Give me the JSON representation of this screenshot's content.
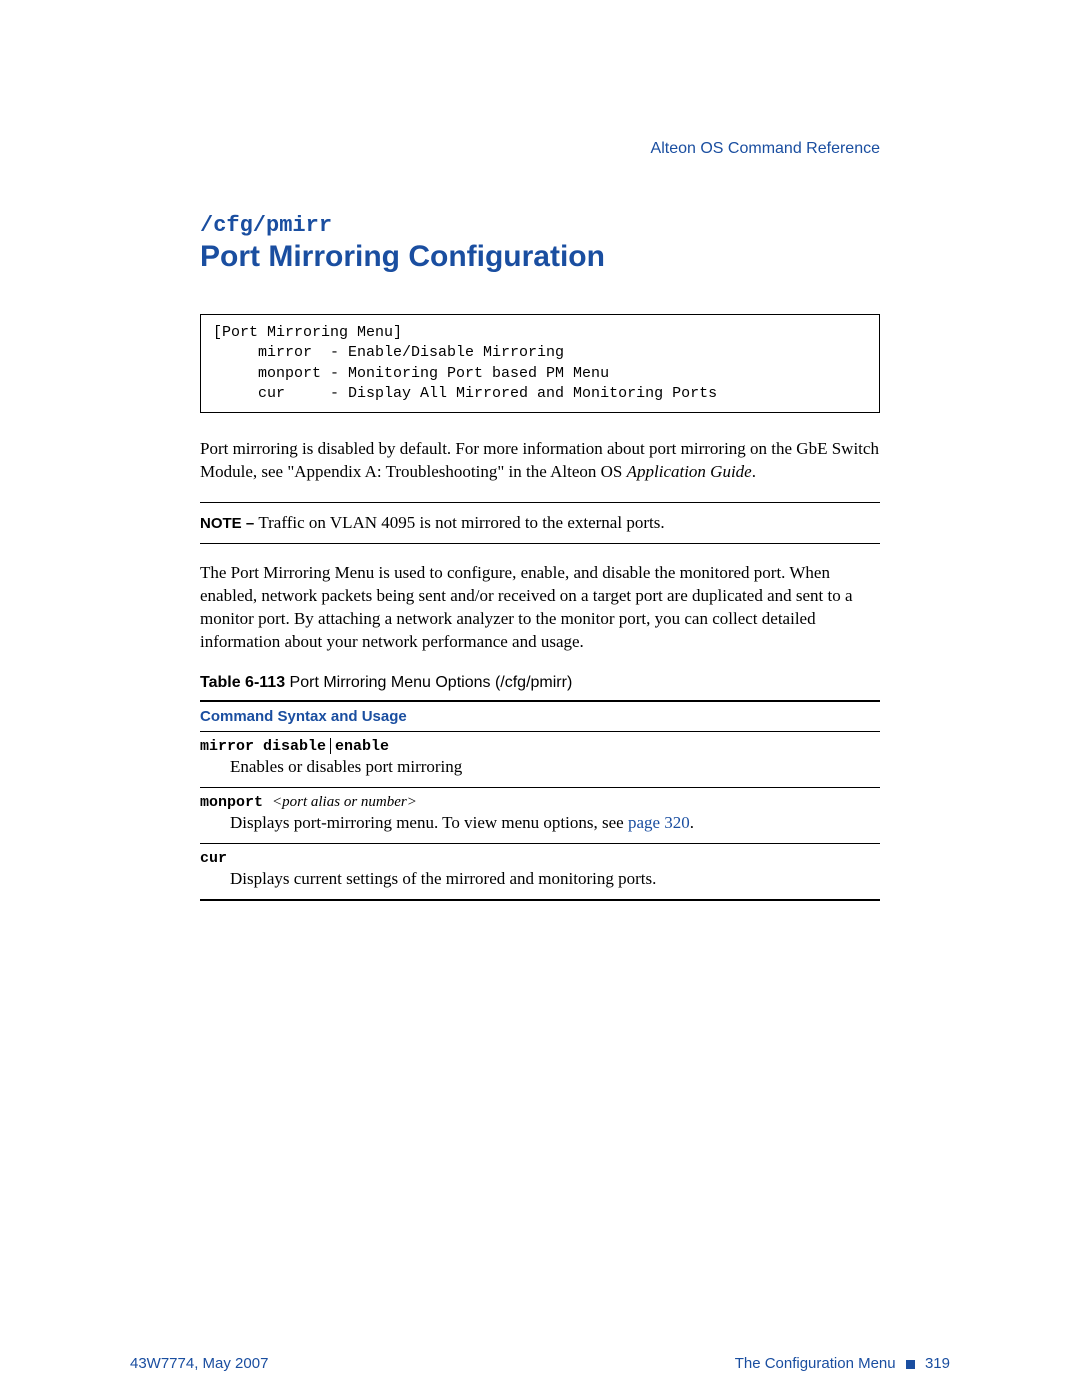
{
  "colors": {
    "brand_blue": "#1a4ea0",
    "text_black": "#000000",
    "background": "#ffffff"
  },
  "header": {
    "doc_title": "Alteon OS  Command Reference"
  },
  "section": {
    "cmd_path": "/cfg/pmirr",
    "title": "Port Mirroring Configuration"
  },
  "code_box": {
    "line1": "[Port Mirroring Menu]",
    "line2": "     mirror  - Enable/Disable Mirroring",
    "line3": "     monport - Monitoring Port based PM Menu",
    "line4": "     cur     - Display All Mirrored and Monitoring Ports"
  },
  "paragraphs": {
    "p1_a": "Port mirroring is disabled by default. For more information about port mirroring on the GbE Switch Module, see \"Appendix A: Troubleshooting\" in the Alteon OS ",
    "p1_italic": "Application Guide",
    "p1_b": ".",
    "p2": "The Port Mirroring Menu is used to configure, enable, and disable the monitored port. When enabled, network packets being sent and/or received on a target port are duplicated and sent to a monitor port. By attaching a network analyzer to the monitor port, you can collect detailed information about your network performance and usage."
  },
  "note": {
    "label": "NOTE – ",
    "text": "Traffic on VLAN 4095 is not mirrored to the external ports."
  },
  "table": {
    "caption_num": "Table 6-113",
    "caption_text": "  Port Mirroring Menu Options (/cfg/pmirr)",
    "header": "Command Syntax and Usage",
    "rows": [
      {
        "syntax_a": "mirror disable",
        "syntax_b": "enable",
        "has_sep": true,
        "param": "",
        "desc_a": "Enables or disables port mirroring",
        "link": "",
        "desc_b": ""
      },
      {
        "syntax_a": "monport  ",
        "syntax_b": "",
        "has_sep": false,
        "param": "<port alias or number>",
        "desc_a": "Displays port-mirroring menu. To view menu options, see ",
        "link": "page 320",
        "desc_b": "."
      },
      {
        "syntax_a": "cur",
        "syntax_b": "",
        "has_sep": false,
        "param": "",
        "desc_a": "Displays current settings of the mirrored and monitoring ports.",
        "link": "",
        "desc_b": ""
      }
    ]
  },
  "footer": {
    "left": "43W7774, May 2007",
    "right_text": "The Configuration Menu",
    "page_num": "319"
  }
}
